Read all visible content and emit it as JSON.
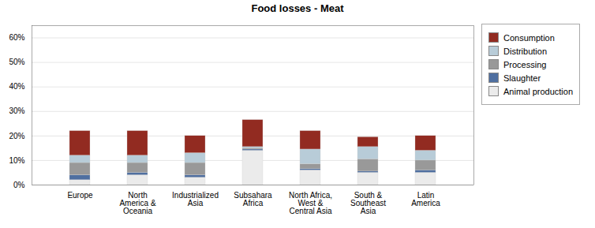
{
  "chart_data": {
    "type": "bar",
    "title": "Food losses - Meat",
    "stacked": true,
    "categories": [
      "Europe",
      "North\nAmerica &\nOceania",
      "Industrialized\nAsia",
      "Subsahara\nAfrica",
      "North Africa,\nWest &\nCentral Asia",
      "South &\nSoutheast\nAsia",
      "Latin\nAmerica"
    ],
    "series": [
      {
        "name": "Animal production",
        "color": "#ebebeb",
        "values": [
          2,
          4,
          3,
          14,
          6,
          5,
          5
        ]
      },
      {
        "name": "Slaughter",
        "color": "#4f6fa0",
        "values": [
          2,
          1,
          1,
          0.5,
          0.5,
          0.5,
          1
        ]
      },
      {
        "name": "Processing",
        "color": "#999999",
        "values": [
          5,
          4,
          5,
          0.5,
          2,
          5,
          4
        ]
      },
      {
        "name": "Distribution",
        "color": "#b8ccd8",
        "values": [
          3,
          3,
          4,
          0.5,
          6,
          5,
          4
        ]
      },
      {
        "name": "Consumption",
        "color": "#922b21",
        "values": [
          10,
          10,
          7,
          11,
          7.5,
          4,
          6
        ]
      }
    ],
    "ylim": [
      0,
      65
    ],
    "yticks": [
      {
        "value": 0,
        "label": "0%"
      },
      {
        "value": 10,
        "label": "10%"
      },
      {
        "value": 20,
        "label": "20%"
      },
      {
        "value": 30,
        "label": "30%"
      },
      {
        "value": 40,
        "label": "40%"
      },
      {
        "value": 50,
        "label": "50%"
      },
      {
        "value": 60,
        "label": "60%"
      }
    ],
    "grid": true,
    "legend": "right"
  }
}
